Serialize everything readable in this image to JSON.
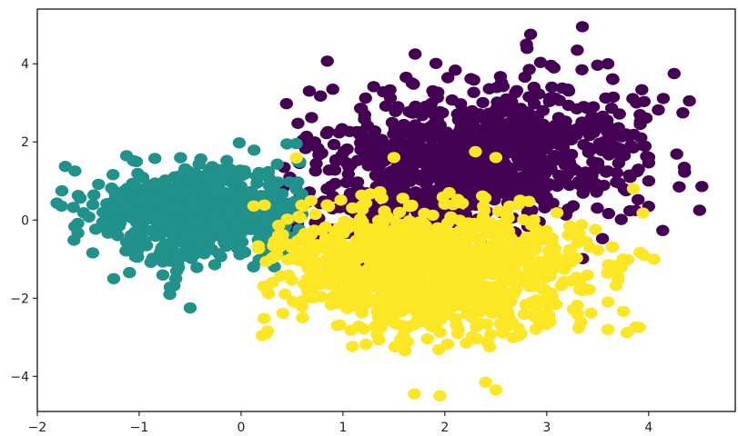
{
  "chart_data": {
    "type": "scatter",
    "title": "",
    "xlabel": "",
    "ylabel": "",
    "xlim": [
      -2,
      4.85
    ],
    "ylim": [
      -4.9,
      5.4
    ],
    "grid": false,
    "legend": "none",
    "x_ticks": [
      -2,
      -1,
      0,
      1,
      2,
      3,
      4
    ],
    "x_tick_labels": [
      "−2",
      "−1",
      "0",
      "1",
      "2",
      "3",
      "4"
    ],
    "y_ticks": [
      -4,
      -2,
      0,
      2,
      4
    ],
    "y_tick_labels": [
      "−4",
      "−2",
      "0",
      "2",
      "4"
    ],
    "clusters": [
      {
        "color": "#440154",
        "count": 1000,
        "center": [
          2.25,
          1.6
        ],
        "spread": [
          0.85,
          0.95
        ],
        "tilt": 0.15,
        "xrange": [
          0.4,
          4.6
        ],
        "yrange": [
          -2.2,
          5.0
        ],
        "outliers": [
          [
            3.35,
            4.95
          ],
          [
            2.8,
            4.5
          ],
          [
            3.3,
            4.35
          ],
          [
            3.6,
            4.0
          ],
          [
            3.65,
            3.6
          ],
          [
            4.25,
            3.75
          ],
          [
            4.4,
            3.05
          ],
          [
            0.9,
            3.35
          ],
          [
            4.35,
            1.35
          ],
          [
            4.5,
            0.25
          ],
          [
            4.3,
            0.85
          ],
          [
            4.0,
            0.35
          ],
          [
            3.9,
            1.3
          ]
        ]
      },
      {
        "color": "#21918c",
        "count": 700,
        "center": [
          -0.45,
          0.2
        ],
        "spread": [
          0.55,
          0.6
        ],
        "tilt": 0.0,
        "xrange": [
          -1.85,
          0.65
        ],
        "yrange": [
          -2.35,
          2.05
        ],
        "outliers": [
          [
            -0.5,
            -2.25
          ],
          [
            -0.7,
            -1.9
          ],
          [
            -1.25,
            -1.5
          ],
          [
            0.45,
            1.95
          ]
        ]
      },
      {
        "color": "#fde725",
        "count": 1100,
        "center": [
          1.85,
          -1.25
        ],
        "spread": [
          0.75,
          0.8
        ],
        "tilt": -0.05,
        "xrange": [
          0.1,
          4.0
        ],
        "yrange": [
          -4.6,
          1.8
        ],
        "outliers": [
          [
            1.7,
            -4.45
          ],
          [
            1.95,
            -4.5
          ],
          [
            2.4,
            -4.15
          ],
          [
            2.5,
            -4.35
          ],
          [
            0.25,
            -2.9
          ],
          [
            3.6,
            -2.8
          ],
          [
            3.75,
            -1.0
          ],
          [
            3.95,
            -0.9
          ],
          [
            4.05,
            -1.0
          ],
          [
            2.3,
            1.75
          ],
          [
            1.5,
            1.6
          ],
          [
            2.5,
            1.6
          ],
          [
            3.85,
            0.8
          ]
        ]
      }
    ]
  }
}
